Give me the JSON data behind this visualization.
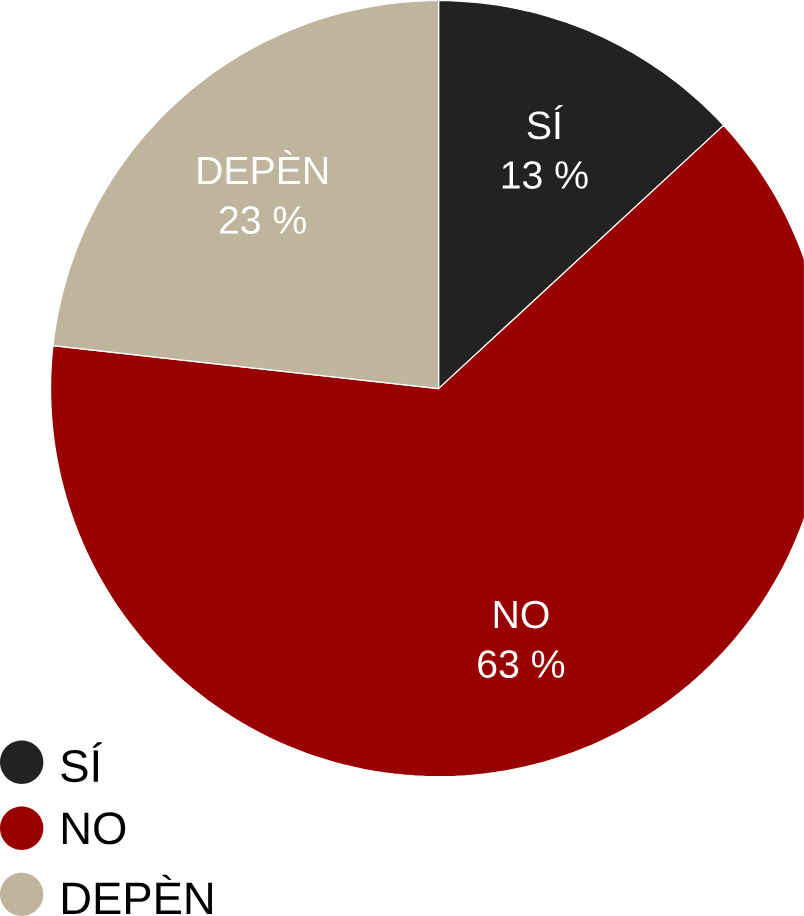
{
  "chart_data": {
    "type": "pie",
    "categories": [
      "SÍ",
      "NO",
      "DEPÈN"
    ],
    "values": [
      13,
      63,
      23
    ],
    "value_labels": [
      "13 %",
      "63 %",
      "23 %"
    ],
    "colors": [
      "#222222",
      "#990000",
      "#bfb59c"
    ],
    "legend": "bottom left"
  }
}
